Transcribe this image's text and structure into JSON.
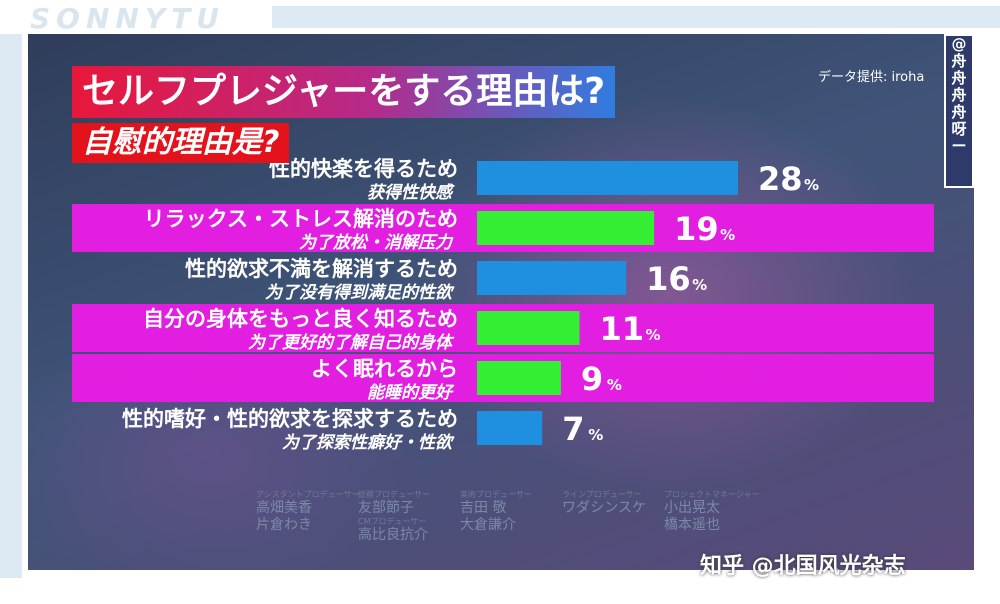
{
  "brand": "SONNYTU",
  "title_jp": "セルフプレジャーをする理由は?",
  "title_cn": "自慰的理由是?",
  "source": "データ提供: iroha",
  "side_tag": [
    "@",
    "舟",
    "舟",
    "舟",
    "舟",
    "呀",
    "ー"
  ],
  "watermark": "知乎 @北国风光杂志",
  "colors": {
    "blue": "#1f8fe0",
    "green": "#33ee33",
    "magenta": "#e21ee0",
    "label_jp": "#ffffff",
    "label_cn": "#ffffff"
  },
  "credits": [
    {
      "role": "アシスタントプロデューサー",
      "names": [
        "高畑美香",
        "片倉わき"
      ]
    },
    {
      "role": "総務プロデューサー",
      "names": [
        "友部節子"
      ],
      "role2": "CMプロデューサー",
      "names2": [
        "高比良抗介"
      ]
    },
    {
      "role": "美術プロデューサー",
      "names": [
        "吉田 敬",
        "大倉謙介"
      ]
    },
    {
      "role": "ラインプロデューサー",
      "names": [
        "ワダシンスケ"
      ]
    },
    {
      "role": "プロジェクトマネージャー",
      "names": [
        "小出晃太",
        "橋本遥也"
      ]
    }
  ],
  "chart_data": {
    "type": "bar",
    "orientation": "horizontal",
    "unit": "%",
    "categories": [
      {
        "jp": "性的快楽を得るため",
        "cn": "获得性快感"
      },
      {
        "jp": "リラックス・ストレス解消のため",
        "cn": "为了放松・消解压力"
      },
      {
        "jp": "性的欲求不満を解消するため",
        "cn": "为了没有得到满足的性欲"
      },
      {
        "jp": "自分の身体をもっと良く知るため",
        "cn": "为了更好的了解自己的身体"
      },
      {
        "jp": "よく眠れるから",
        "cn": "能睡的更好"
      },
      {
        "jp": "性的嗜好・性的欲求を探求するため",
        "cn": "为了探索性癖好・性欲"
      }
    ],
    "values": [
      28,
      19,
      16,
      11,
      9,
      7
    ],
    "highlighted": [
      false,
      true,
      false,
      true,
      true,
      false
    ],
    "xlim": [
      0,
      28
    ]
  }
}
